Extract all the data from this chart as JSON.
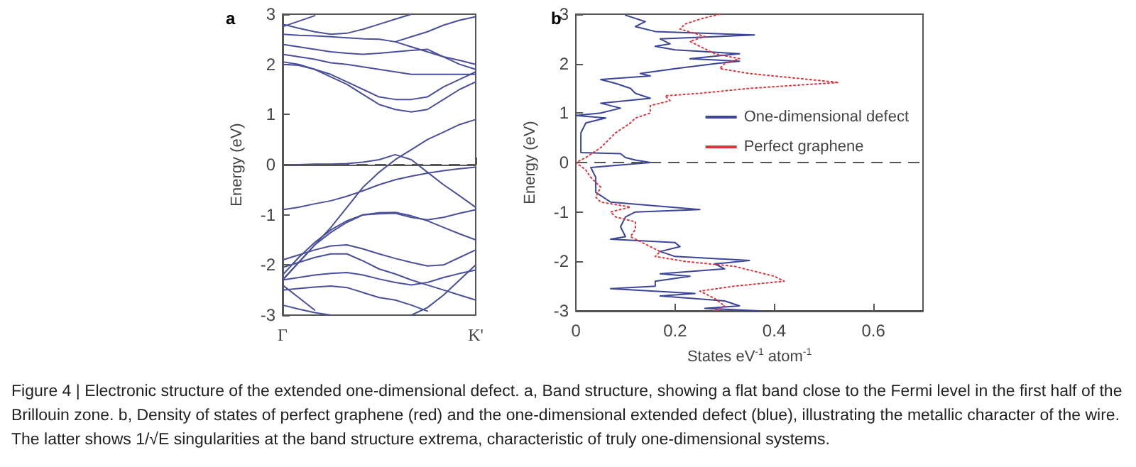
{
  "chart_data": [
    {
      "type": "line",
      "title": "a",
      "ylabel": "Energy (eV)",
      "categories": [
        "Γ",
        null,
        null,
        null,
        null,
        null,
        null,
        null,
        null,
        null,
        null,
        null,
        "K'"
      ],
      "ylim": [
        -3,
        3
      ],
      "yticks": [
        -3,
        -2,
        -1,
        0,
        1,
        2,
        3
      ],
      "grid": false,
      "marker": "none",
      "line_style": "solid",
      "ref_lines": [
        {
          "axis": "y",
          "value": 0,
          "label": null,
          "color": "#555555",
          "line_style": "dashed"
        }
      ],
      "series": [
        {
          "color": "#4a4f9a",
          "values": [
            0,
            0,
            0.01,
            0.01,
            0.02,
            0.05,
            0.1,
            0.2,
            0.1,
            -0.15,
            -0.4,
            -0.62,
            -0.85
          ]
        },
        {
          "color": "#4a4f9a",
          "values": [
            -0.9,
            -0.85,
            -0.78,
            -0.72,
            -0.63,
            -0.52,
            -0.4,
            -0.3,
            -0.23,
            -0.17,
            -0.12,
            -0.08,
            -0.05
          ]
        },
        {
          "color": "#4a4f9a",
          "values": [
            -2.3,
            -1.95,
            -1.6,
            -1.25,
            -0.85,
            -0.45,
            -0.15,
            0.1,
            0.3,
            0.5,
            0.65,
            0.8,
            0.9
          ]
        },
        {
          "color": "#4a4f9a",
          "values": [
            -2.3,
            -1.95,
            -1.6,
            -1.35,
            -1.15,
            -1,
            -0.96,
            -0.95,
            -1.02,
            -1.12,
            -1.25,
            -1.38,
            -1.5
          ]
        },
        {
          "color": "#4a4f9a",
          "values": [
            -2.2,
            -1.85,
            -1.55,
            -1.3,
            -1.12,
            -1,
            -0.98,
            -0.97,
            -1.05,
            -1.1,
            -1.05,
            -0.97,
            -0.9
          ]
        },
        {
          "color": "#4a4f9a",
          "values": [
            2,
            1.98,
            1.9,
            1.75,
            1.6,
            1.4,
            1.2,
            1.1,
            1.05,
            1.1,
            1.3,
            1.5,
            1.65
          ]
        },
        {
          "color": "#4a4f9a",
          "values": [
            2.05,
            2,
            1.9,
            1.8,
            1.65,
            1.5,
            1.35,
            1.3,
            1.3,
            1.35,
            1.55,
            1.7,
            1.85
          ]
        },
        {
          "color": "#4a4f9a",
          "values": [
            2.2,
            2.15,
            2.1,
            2.03,
            2,
            1.95,
            1.9,
            1.85,
            1.8,
            1.8,
            1.8,
            1.8,
            1.8
          ]
        },
        {
          "color": "#4a4f9a",
          "values": [
            2.4,
            2.35,
            2.3,
            2.25,
            2.22,
            2.2,
            2.22,
            2.25,
            2.28,
            2.3,
            2.15,
            2,
            1.9
          ]
        },
        {
          "color": "#4a4f9a",
          "values": [
            2.6,
            2.58,
            2.57,
            2.55,
            2.53,
            2.51,
            2.5,
            2.45,
            2.35,
            2.25,
            2.15,
            2.08,
            2
          ]
        },
        {
          "color": "#4a4f9a",
          "values": [
            2.8,
            2.72,
            2.65,
            2.6,
            2.62,
            2.7,
            2.8,
            2.9,
            3,
            null,
            null,
            null,
            null
          ]
        },
        {
          "color": "#4a4f9a",
          "values": [
            2.75,
            2.86,
            2.97,
            null,
            null,
            null,
            null,
            null,
            null,
            null,
            null,
            null,
            null
          ]
        },
        {
          "color": "#4a4f9a",
          "values": [
            null,
            null,
            null,
            null,
            null,
            null,
            null,
            2.45,
            2.55,
            2.65,
            2.78,
            2.88,
            2.95
          ]
        },
        {
          "color": "#4a4f9a",
          "values": [
            -1.9,
            -1.8,
            -1.7,
            -1.62,
            -1.6,
            -1.68,
            -1.78,
            -1.87,
            -1.95,
            -2.02,
            -2,
            -1.85,
            -1.7
          ]
        },
        {
          "color": "#4a4f9a",
          "values": [
            -2.05,
            -1.95,
            -1.85,
            -1.78,
            -1.78,
            -1.92,
            -2.08,
            -2.18,
            -2.3,
            -2.4,
            -2.5,
            -2.6,
            -2.7
          ]
        },
        {
          "color": "#4a4f9a",
          "values": [
            -2.3,
            -2.25,
            -2.2,
            -2.17,
            -2.15,
            -2.2,
            -2.28,
            -2.35,
            -2.4,
            -2.35,
            -2.25,
            -2.17,
            -2.1
          ]
        },
        {
          "color": "#4a4f9a",
          "values": [
            -2.5,
            -2.47,
            -2.44,
            -2.42,
            -2.45,
            -2.55,
            -2.65,
            -2.7,
            -2.8,
            -2.92,
            null,
            null,
            null
          ]
        },
        {
          "color": "#4a4f9a",
          "values": [
            -2.8,
            -2.88,
            -2.95,
            -3,
            null,
            null,
            null,
            null,
            null,
            null,
            null,
            null,
            null
          ]
        },
        {
          "color": "#4a4f9a",
          "values": [
            -2.4,
            -2.65,
            -2.9,
            null,
            null,
            null,
            null,
            null,
            null,
            null,
            null,
            null,
            null
          ]
        },
        {
          "color": "#4a4f9a",
          "values": [
            null,
            null,
            null,
            null,
            null,
            null,
            null,
            null,
            -3,
            -2.85,
            -2.6,
            -2.3,
            -2
          ]
        }
      ]
    },
    {
      "type": "line",
      "title": "b",
      "xlabel": "States eV$^{-1}$ atom$^{-1}$",
      "ylabel": "Energy (eV)",
      "xlim": [
        0,
        0.7
      ],
      "xticks": [
        0,
        0.2,
        0.4,
        0.6
      ],
      "ylim": [
        -3,
        3
      ],
      "yticks": [
        -3,
        -2,
        -1,
        0,
        1,
        2,
        3
      ],
      "grid": false,
      "marker": "none",
      "legend": "right",
      "ref_lines": [
        {
          "axis": "y",
          "value": 0,
          "label": null,
          "color": "#555555",
          "line_style": "dashed"
        }
      ],
      "annotations": [
        "Figure 4 | Electronic structure of the extended one-dimensional defect. a, Band structure, showing a flat band close to the Fermi level in the first half of the Brillouin zone. b, Density of states of perfect graphene (red) and the one-dimensional extended defect (blue), illustrating the metallic character of the wire. The latter shows 1/√E singularities at the band structure extrema, characteristic of truly one-dimensional systems."
      ],
      "series": [
        {
          "name": "One-dimensional defect",
          "color": "#3b4496",
          "line_style": "solid",
          "x": [
            0.1,
            0.14,
            0.12,
            0.16,
            0.36,
            0.17,
            0.19,
            0.16,
            0.2,
            0.33,
            0.23,
            0.33,
            0.28,
            0.2,
            0.13,
            0.15,
            0.05,
            0.08,
            0.11,
            0.12,
            0.15,
            0.05,
            0.09,
            0.05,
            0,
            0.06,
            0.02,
            0.01,
            0.01,
            0.01,
            0.09,
            0.1,
            0.12,
            0.15,
            0.09,
            0.03,
            0.04,
            0.04,
            0.07,
            0.25,
            0.12,
            0.1,
            0.09,
            0.1,
            0.07,
            0.2,
            0.21,
            0.17,
            0.2,
            0.35,
            0.28,
            0.3,
            0.17,
            0.23,
            0.16,
            0.16,
            0.07,
            0.24,
            0.17,
            0.3,
            0.33,
            0.26,
            0.37
          ],
          "values": [
            2.98,
            2.85,
            2.75,
            2.65,
            2.58,
            2.5,
            2.4,
            2.35,
            2.28,
            2.2,
            2.1,
            2.05,
            2,
            1.9,
            1.8,
            1.75,
            1.68,
            1.6,
            1.5,
            1.4,
            1.3,
            1.2,
            1.1,
            1,
            0.95,
            0.9,
            0.8,
            0.6,
            0.3,
            0.2,
            0.18,
            0.1,
            0.05,
            0,
            -0.05,
            -0.1,
            -0.3,
            -0.6,
            -0.8,
            -0.95,
            -1,
            -1.1,
            -1.3,
            -1.5,
            -1.55,
            -1.62,
            -1.7,
            -1.8,
            -1.9,
            -1.98,
            -2.05,
            -2.15,
            -2.25,
            -2.3,
            -2.4,
            -2.5,
            -2.55,
            -2.65,
            -2.7,
            -2.8,
            -2.9,
            -2.95,
            -3
          ]
        },
        {
          "name": "Perfect graphene",
          "color": "#e8303a",
          "line_style": "dotted",
          "x": [
            0.29,
            0.25,
            0.22,
            0.21,
            0.26,
            0.23,
            0.25,
            0.28,
            0.33,
            0.3,
            0.29,
            0.35,
            0.45,
            0.53,
            0.35,
            0.25,
            0.18,
            0.19,
            0.15,
            0.15,
            0.12,
            0.11,
            0.08,
            0.07,
            0.05,
            0.02,
            0,
            0.02,
            0.03,
            0.05,
            0.04,
            0.05,
            0.11,
            0.07,
            0.08,
            0.12,
            0.12,
            0.11,
            0.13,
            0.15,
            0.17,
            0.16,
            0.22,
            0.32,
            0.4,
            0.42,
            0.32,
            0.25,
            0.28,
            0.3,
            0.28
          ],
          "values": [
            3,
            2.9,
            2.8,
            2.7,
            2.55,
            2.45,
            2.35,
            2.2,
            2.1,
            2,
            1.9,
            1.8,
            1.7,
            1.62,
            1.5,
            1.4,
            1.35,
            1.25,
            1.15,
            1,
            0.9,
            0.8,
            0.6,
            0.5,
            0.3,
            0.1,
            0,
            -0.15,
            -0.3,
            -0.5,
            -0.7,
            -0.8,
            -0.9,
            -1,
            -1.1,
            -1.2,
            -1.35,
            -1.5,
            -1.6,
            -1.7,
            -1.8,
            -1.9,
            -2,
            -2.1,
            -2.3,
            -2.4,
            -2.5,
            -2.6,
            -2.75,
            -2.9,
            -3
          ]
        }
      ]
    }
  ]
}
